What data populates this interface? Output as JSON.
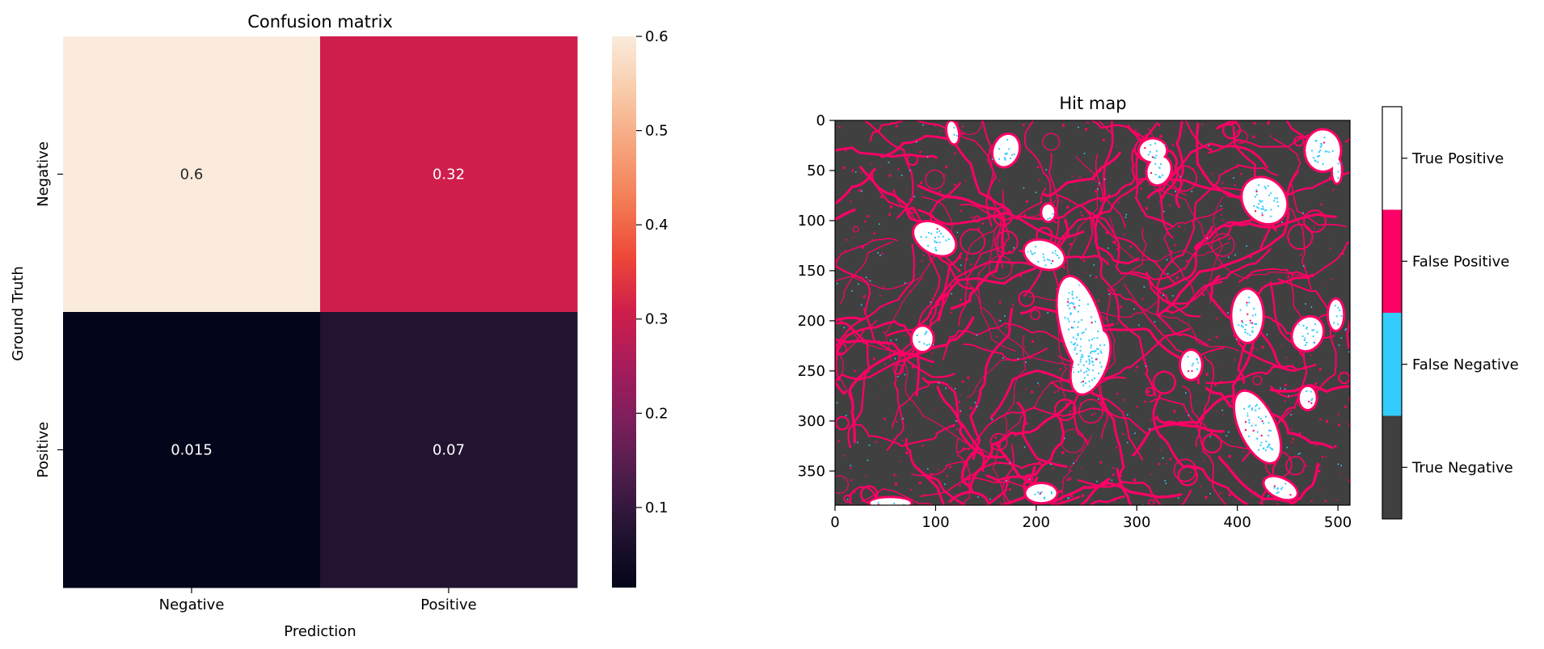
{
  "chart_data": [
    {
      "type": "heatmap",
      "title": "Confusion matrix",
      "xlabel": "Prediction",
      "ylabel": "Ground Truth",
      "x_categories": [
        "Negative",
        "Positive"
      ],
      "y_categories": [
        "Negative",
        "Positive"
      ],
      "values": [
        [
          0.6,
          0.32
        ],
        [
          0.015,
          0.07
        ]
      ],
      "cell_labels": [
        [
          "0.6",
          "0.32"
        ],
        [
          "0.015",
          "0.07"
        ]
      ],
      "cell_colors": [
        [
          "#faebdd",
          "#cf1e4b"
        ],
        [
          "#03051a",
          "#221331"
        ]
      ],
      "colorbar": {
        "range": [
          0.015,
          0.6
        ],
        "ticks": [
          0.1,
          0.2,
          0.3,
          0.4,
          0.5,
          0.6
        ],
        "tick_labels": [
          "0.1",
          "0.2",
          "0.3",
          "0.4",
          "0.5",
          "0.6"
        ],
        "colormap": "rocket",
        "stops": [
          [
            0.0,
            "#03051a"
          ],
          [
            0.1,
            "#221331"
          ],
          [
            0.2,
            "#4c1d4b"
          ],
          [
            0.3,
            "#7b1f5c"
          ],
          [
            0.4,
            "#a61c5c"
          ],
          [
            0.5,
            "#cf1e4b"
          ],
          [
            0.6,
            "#ed4838"
          ],
          [
            0.7,
            "#f37c54"
          ],
          [
            0.8,
            "#f6a47c"
          ],
          [
            0.9,
            "#f8cba9"
          ],
          [
            1.0,
            "#faebdd"
          ]
        ]
      }
    },
    {
      "type": "heatmap",
      "title": "Hit map",
      "x_ticks": [
        0,
        100,
        200,
        300,
        400,
        500
      ],
      "x_tick_labels": [
        "0",
        "100",
        "200",
        "300",
        "400",
        "500"
      ],
      "y_ticks": [
        0,
        50,
        100,
        150,
        200,
        250,
        300,
        350
      ],
      "y_tick_labels": [
        "0",
        "50",
        "100",
        "150",
        "200",
        "250",
        "300",
        "350"
      ],
      "xlim": [
        0,
        512
      ],
      "ylim": [
        384,
        0
      ],
      "classes": [
        "True Negative",
        "False Negative",
        "False Positive",
        "True Positive"
      ],
      "class_colors": [
        "#404040",
        "#33ccff",
        "#ff0066",
        "#ffffff"
      ],
      "colorbar_labels": [
        "True Positive",
        "False Positive",
        "False Negative",
        "True Negative"
      ],
      "tp_blobs": [
        [
          117,
          12,
          5,
          11,
          -10
        ],
        [
          170,
          30,
          12,
          16,
          20
        ],
        [
          316,
          30,
          13,
          11,
          0
        ],
        [
          322,
          50,
          11,
          14,
          20
        ],
        [
          485,
          30,
          17,
          20,
          0
        ],
        [
          499,
          50,
          4,
          12,
          0
        ],
        [
          427,
          80,
          20,
          24,
          -40
        ],
        [
          212,
          92,
          6,
          8,
          0
        ],
        [
          99,
          118,
          14,
          22,
          -60
        ],
        [
          208,
          134,
          20,
          13,
          20
        ],
        [
          410,
          195,
          15,
          26,
          0
        ],
        [
          498,
          194,
          7,
          15,
          0
        ],
        [
          470,
          213,
          14,
          17,
          30
        ],
        [
          87,
          218,
          10,
          12,
          0
        ],
        [
          245,
          207,
          20,
          52,
          -15
        ],
        [
          254,
          241,
          16,
          33,
          20
        ],
        [
          354,
          244,
          10,
          14,
          0
        ],
        [
          420,
          306,
          17,
          38,
          -25
        ],
        [
          470,
          277,
          8,
          11,
          0
        ],
        [
          205,
          372,
          15,
          9,
          0
        ],
        [
          443,
          367,
          17,
          9,
          25
        ],
        [
          55,
          382,
          20,
          5,
          0
        ]
      ]
    }
  ]
}
